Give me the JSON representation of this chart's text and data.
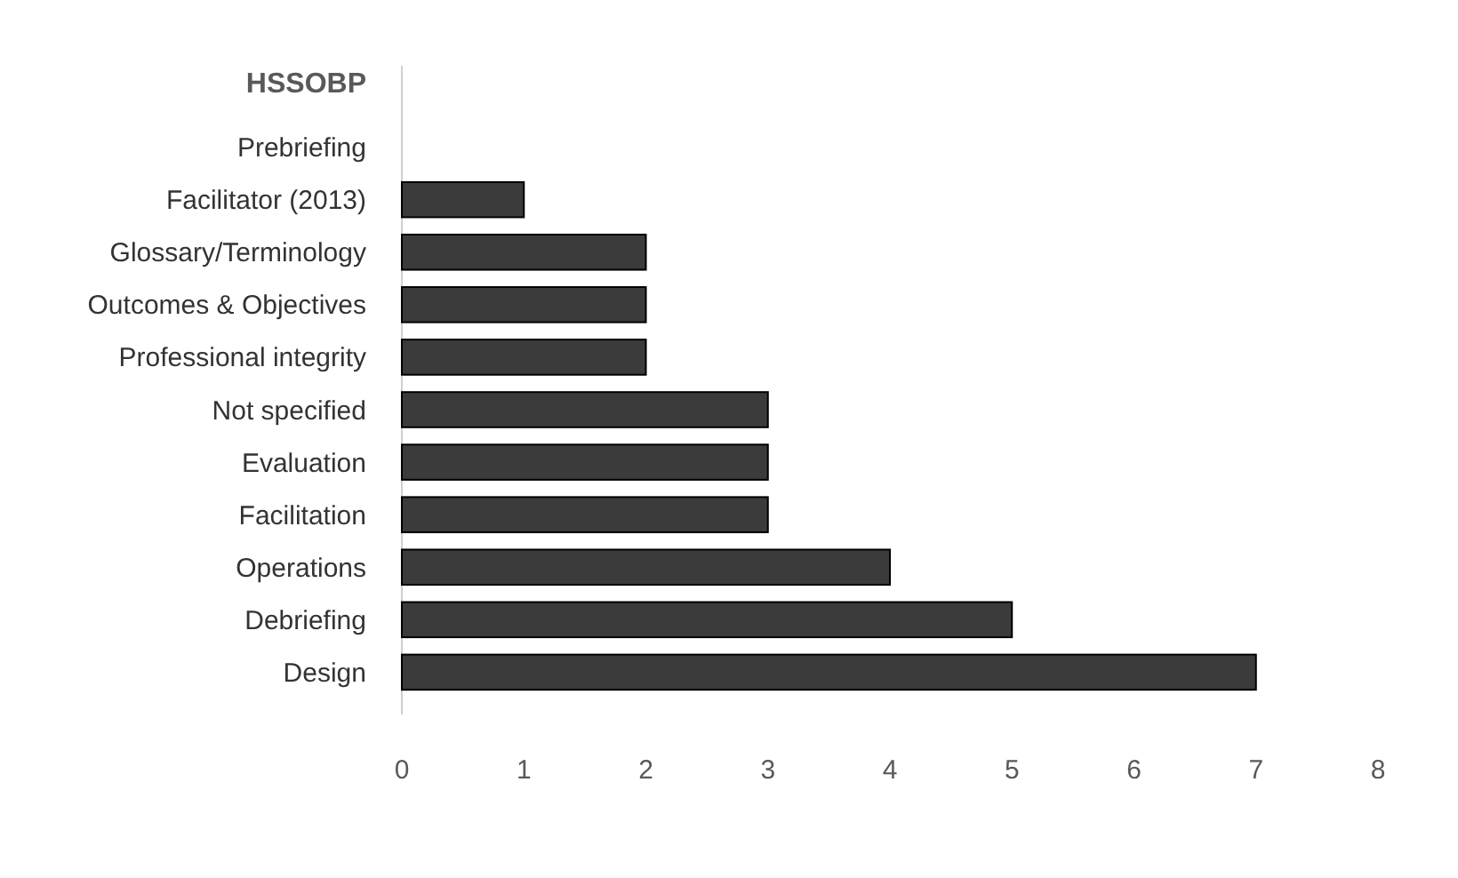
{
  "chart_data": {
    "type": "bar",
    "orientation": "horizontal",
    "title": "HSSOBP",
    "categories": [
      "Prebriefing",
      "Facilitator (2013)",
      "Glossary/Terminology",
      "Outcomes & Objectives",
      "Professional integrity",
      "Not specified",
      "Evaluation",
      "Facilitation",
      "Operations",
      "Debriefing",
      "Design"
    ],
    "values": [
      0,
      1,
      2,
      2,
      2,
      3,
      3,
      3,
      4,
      5,
      7
    ],
    "color": "#3b3b3b",
    "xlim": [
      0,
      8
    ],
    "xticks": [
      0,
      1,
      2,
      3,
      4,
      5,
      6,
      7,
      8
    ],
    "grid": false
  }
}
